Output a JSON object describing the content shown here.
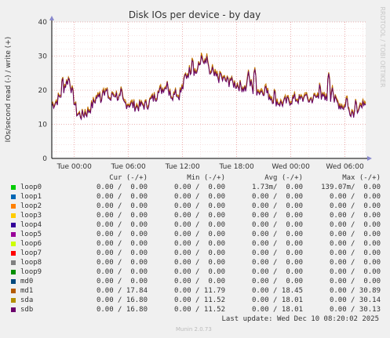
{
  "chart_data": {
    "type": "line",
    "title": "Disk IOs per device - by day",
    "ylabel": "IOs/second read (-) / write (+)",
    "ylim": [
      0,
      40
    ],
    "yticks": [
      0,
      10,
      20,
      30,
      40
    ],
    "xticks": [
      "Tue 00:00",
      "Tue 06:00",
      "Tue 12:00",
      "Tue 18:00",
      "Wed 00:00",
      "Wed 06:00"
    ],
    "xlim_hours": [
      -2.5,
      32.3
    ],
    "xtick_hours": [
      0,
      6,
      12,
      18,
      24,
      30
    ],
    "grid": true,
    "side_label": "RRDTOOL / TOBI OETIKER",
    "series": [
      {
        "name": "md1",
        "color": "#CC7700",
        "offset": 0.6
      },
      {
        "name": "sda",
        "color": "#AA6600",
        "offset": 0.3
      },
      {
        "name": "sdb",
        "color": "#660066",
        "offset": 0.0
      }
    ],
    "profile": [
      [
        -2.5,
        15.5
      ],
      [
        -2.0,
        16.5
      ],
      [
        -1.5,
        18.5
      ],
      [
        -1.0,
        21.5
      ],
      [
        -0.6,
        23.5
      ],
      [
        -0.3,
        20.0
      ],
      [
        0.0,
        16.5
      ],
      [
        0.3,
        13.0
      ],
      [
        0.8,
        12.5
      ],
      [
        1.5,
        13.5
      ],
      [
        2.0,
        15.5
      ],
      [
        2.5,
        18.0
      ],
      [
        3.0,
        17.0
      ],
      [
        3.5,
        19.5
      ],
      [
        4.0,
        17.0
      ],
      [
        4.5,
        19.0
      ],
      [
        5.0,
        17.5
      ],
      [
        5.5,
        16.0
      ],
      [
        6.0,
        16.0
      ],
      [
        6.5,
        15.5
      ],
      [
        7.0,
        15.0
      ],
      [
        7.5,
        15.5
      ],
      [
        8.0,
        15.5
      ],
      [
        8.5,
        17.0
      ],
      [
        9.0,
        18.0
      ],
      [
        9.5,
        19.5
      ],
      [
        10.0,
        21.0
      ],
      [
        10.5,
        19.0
      ],
      [
        11.0,
        18.5
      ],
      [
        11.5,
        18.0
      ],
      [
        12.0,
        20.5
      ],
      [
        12.5,
        24.5
      ],
      [
        13.0,
        26.5
      ],
      [
        13.5,
        25.0
      ],
      [
        14.0,
        28.0
      ],
      [
        14.5,
        27.5
      ],
      [
        15.0,
        25.0
      ],
      [
        15.5,
        24.0
      ],
      [
        16.0,
        23.5
      ],
      [
        16.5,
        23.0
      ],
      [
        17.0,
        22.5
      ],
      [
        17.5,
        22.0
      ],
      [
        18.0,
        21.5
      ],
      [
        18.5,
        21.0
      ],
      [
        19.0,
        20.5
      ],
      [
        19.5,
        20.0
      ],
      [
        20.0,
        19.0
      ],
      [
        20.5,
        19.5
      ],
      [
        21.0,
        20.0
      ],
      [
        21.5,
        18.5
      ],
      [
        22.0,
        17.5
      ],
      [
        22.5,
        16.5
      ],
      [
        23.0,
        16.0
      ],
      [
        23.5,
        16.5
      ],
      [
        24.0,
        17.0
      ],
      [
        24.5,
        17.5
      ],
      [
        25.0,
        17.0
      ],
      [
        25.5,
        17.5
      ],
      [
        26.0,
        17.0
      ],
      [
        26.5,
        17.5
      ],
      [
        27.0,
        18.0
      ],
      [
        27.5,
        17.5
      ],
      [
        28.0,
        17.0
      ],
      [
        28.5,
        17.5
      ],
      [
        29.0,
        16.5
      ],
      [
        29.5,
        15.5
      ],
      [
        30.0,
        15.0
      ],
      [
        30.5,
        14.0
      ],
      [
        31.0,
        13.5
      ],
      [
        31.5,
        14.0
      ],
      [
        32.3,
        14.5
      ]
    ],
    "spikes": [
      [
        -1.3,
        24.0
      ],
      [
        1.2,
        14.0
      ],
      [
        2.8,
        19.5
      ],
      [
        3.2,
        20.5
      ],
      [
        4.2,
        20.0
      ],
      [
        5.2,
        21.0
      ],
      [
        9.3,
        20.0
      ],
      [
        10.3,
        22.5
      ],
      [
        11.2,
        20.5
      ],
      [
        12.3,
        25.5
      ],
      [
        13.1,
        29.5
      ],
      [
        13.3,
        24.0
      ],
      [
        14.1,
        30.5
      ],
      [
        14.4,
        28.0
      ],
      [
        14.7,
        30.0
      ],
      [
        15.3,
        27.0
      ],
      [
        16.2,
        25.5
      ],
      [
        17.3,
        24.0
      ],
      [
        19.3,
        25.5
      ],
      [
        19.6,
        23.0
      ],
      [
        20.0,
        26.5
      ],
      [
        20.3,
        20.0
      ],
      [
        21.2,
        22.0
      ],
      [
        22.2,
        20.5
      ],
      [
        25.6,
        19.5
      ],
      [
        27.2,
        22.0
      ],
      [
        28.2,
        25.0
      ],
      [
        28.6,
        21.0
      ],
      [
        30.2,
        18.5
      ],
      [
        31.2,
        17.5
      ],
      [
        31.6,
        12.5
      ],
      [
        32.0,
        17.0
      ]
    ]
  },
  "legend": {
    "headers": {
      "cur": "Cur (-/+)",
      "min": "Min (-/+)",
      "avg": "Avg (-/+)",
      "max": "Max (-/+)"
    },
    "rows": [
      {
        "name": "loop0",
        "color": "#00CC00",
        "cur": "0.00 /  0.00",
        "min": "0.00 /  0.00",
        "avg": "1.73m/  0.00",
        "max": "139.07m/  0.00"
      },
      {
        "name": "loop1",
        "color": "#0066B3",
        "cur": "0.00 /  0.00",
        "min": "0.00 /  0.00",
        "avg": "0.00 /  0.00",
        "max": "0.00 /  0.00"
      },
      {
        "name": "loop2",
        "color": "#FF8000",
        "cur": "0.00 /  0.00",
        "min": "0.00 /  0.00",
        "avg": "0.00 /  0.00",
        "max": "0.00 /  0.00"
      },
      {
        "name": "loop3",
        "color": "#FFCC00",
        "cur": "0.00 /  0.00",
        "min": "0.00 /  0.00",
        "avg": "0.00 /  0.00",
        "max": "0.00 /  0.00"
      },
      {
        "name": "loop4",
        "color": "#330099",
        "cur": "0.00 /  0.00",
        "min": "0.00 /  0.00",
        "avg": "0.00 /  0.00",
        "max": "0.00 /  0.00"
      },
      {
        "name": "loop5",
        "color": "#990099",
        "cur": "0.00 /  0.00",
        "min": "0.00 /  0.00",
        "avg": "0.00 /  0.00",
        "max": "0.00 /  0.00"
      },
      {
        "name": "loop6",
        "color": "#CCFF00",
        "cur": "0.00 /  0.00",
        "min": "0.00 /  0.00",
        "avg": "0.00 /  0.00",
        "max": "0.00 /  0.00"
      },
      {
        "name": "loop7",
        "color": "#FF0000",
        "cur": "0.00 /  0.00",
        "min": "0.00 /  0.00",
        "avg": "0.00 /  0.00",
        "max": "0.00 /  0.00"
      },
      {
        "name": "loop8",
        "color": "#808080",
        "cur": "0.00 /  0.00",
        "min": "0.00 /  0.00",
        "avg": "0.00 /  0.00",
        "max": "0.00 /  0.00"
      },
      {
        "name": "loop9",
        "color": "#008F00",
        "cur": "0.00 /  0.00",
        "min": "0.00 /  0.00",
        "avg": "0.00 /  0.00",
        "max": "0.00 /  0.00"
      },
      {
        "name": "md0",
        "color": "#00487D",
        "cur": "0.00 /  0.00",
        "min": "0.00 /  0.00",
        "avg": "0.00 /  0.00",
        "max": "0.00 /  0.00"
      },
      {
        "name": "md1",
        "color": "#B35A00",
        "cur": "0.00 / 17.84",
        "min": "0.00 / 11.79",
        "avg": "0.00 / 18.45",
        "max": "0.00 / 30.89"
      },
      {
        "name": "sda",
        "color": "#B38F00",
        "cur": "0.00 / 16.80",
        "min": "0.00 / 11.52",
        "avg": "0.00 / 18.01",
        "max": "0.00 / 30.14"
      },
      {
        "name": "sdb",
        "color": "#6B006B",
        "cur": "0.00 / 16.80",
        "min": "0.00 / 11.52",
        "avg": "0.00 / 18.01",
        "max": "0.00 / 30.13"
      }
    ]
  },
  "footer": {
    "last_update": "Last update: Wed Dec 10 08:20:02 2025",
    "version": "Munin 2.0.73"
  }
}
